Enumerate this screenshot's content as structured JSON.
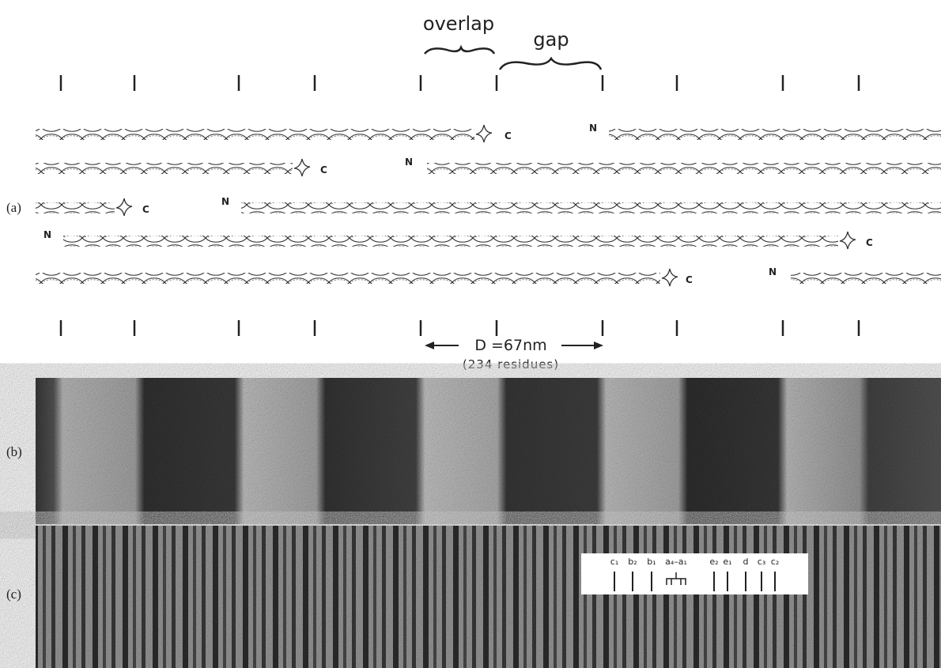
{
  "header": {
    "overlap_label": "overlap",
    "gap_label": "gap"
  },
  "panel_a": {
    "label": "(a)",
    "rows": [
      [
        "C",
        "N"
      ],
      [
        "C",
        "N"
      ],
      [
        "C",
        "N"
      ],
      [
        "N",
        "C"
      ],
      [
        "C",
        "N"
      ]
    ]
  },
  "period": {
    "label": "D =67nm",
    "residues": "(234 residues)"
  },
  "panel_b": {
    "label": "(b)"
  },
  "panel_c": {
    "label": "(c)",
    "bands": [
      "c₁",
      "b₂",
      "b₁",
      "a₄–a₁",
      "e₂",
      "e₁",
      "d",
      "c₃",
      "c₂"
    ]
  }
}
